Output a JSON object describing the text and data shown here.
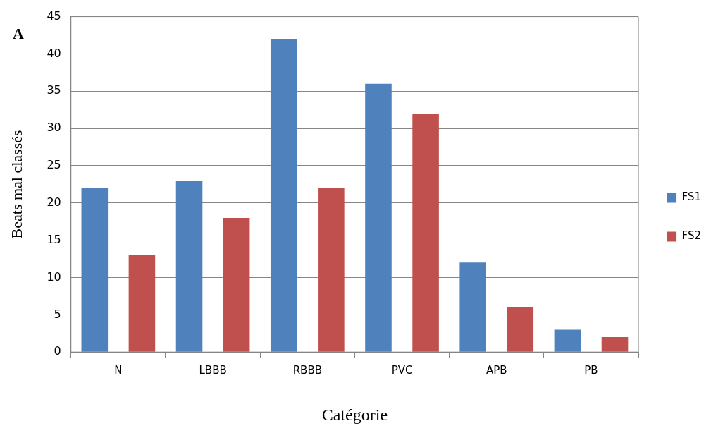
{
  "chart_data": {
    "type": "bar",
    "xlabel": "Catégorie",
    "ylabel": "Beats mal classés",
    "annotations": [
      "A"
    ],
    "categories": [
      "N",
      "LBBB",
      "RBBB",
      "PVC",
      "APB",
      "PB"
    ],
    "series": [
      {
        "name": "FS1",
        "color": "#4f81bd",
        "values": [
          22,
          23,
          42,
          36,
          12,
          3
        ]
      },
      {
        "name": "FS2",
        "color": "#c0504d",
        "values": [
          13,
          18,
          22,
          32,
          6,
          2
        ]
      }
    ],
    "ylim": [
      0,
      45
    ],
    "yticks": [
      0,
      5,
      10,
      15,
      20,
      25,
      30,
      35,
      40,
      45
    ],
    "grid": "y",
    "legend": "right"
  }
}
